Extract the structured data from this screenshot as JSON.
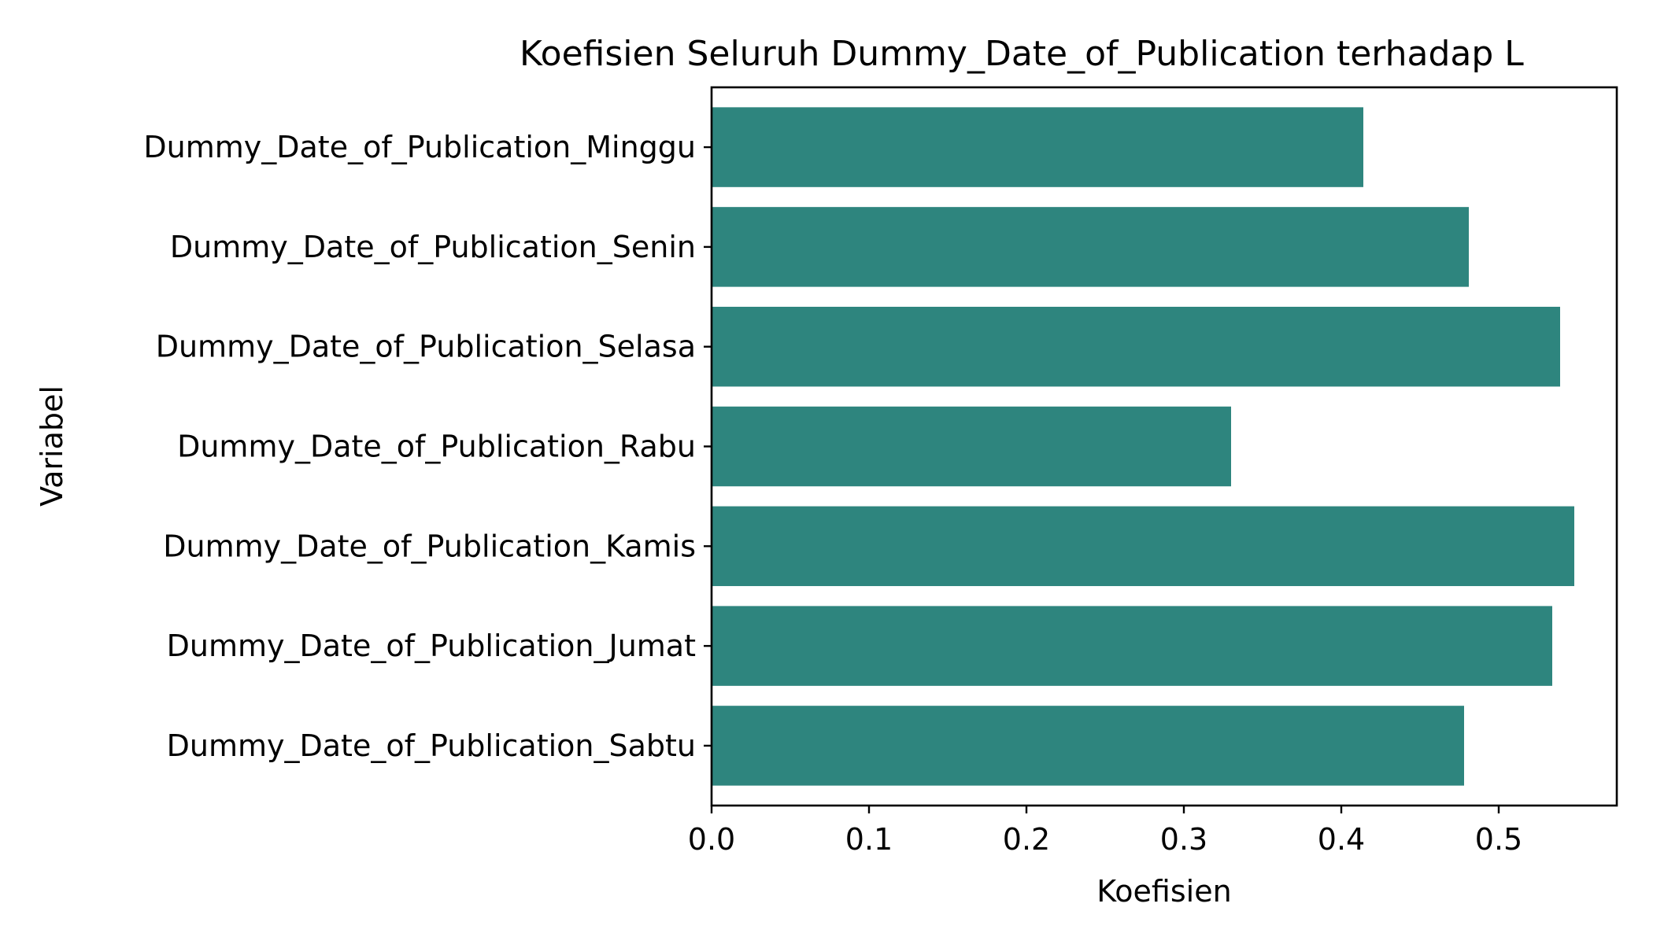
{
  "chart_data": {
    "type": "bar",
    "orientation": "horizontal",
    "title": "Koefisien Seluruh Dummy_Date_of_Publication terhadap L",
    "xlabel": "Koefisien",
    "ylabel": "Variabel",
    "categories": [
      "Dummy_Date_of_Publication_Minggu",
      "Dummy_Date_of_Publication_Senin",
      "Dummy_Date_of_Publication_Selasa",
      "Dummy_Date_of_Publication_Rabu",
      "Dummy_Date_of_Publication_Kamis",
      "Dummy_Date_of_Publication_Jumat",
      "Dummy_Date_of_Publication_Sabtu"
    ],
    "values": [
      0.414,
      0.481,
      0.539,
      0.33,
      0.548,
      0.534,
      0.478
    ],
    "xlim": [
      0,
      0.575
    ],
    "xticks": [
      0.0,
      0.1,
      0.2,
      0.3,
      0.4,
      0.5
    ],
    "xtick_labels": [
      "0.0",
      "0.1",
      "0.2",
      "0.3",
      "0.4",
      "0.5"
    ],
    "bar_color": "#2e857e",
    "grid": false,
    "legend": "none"
  }
}
